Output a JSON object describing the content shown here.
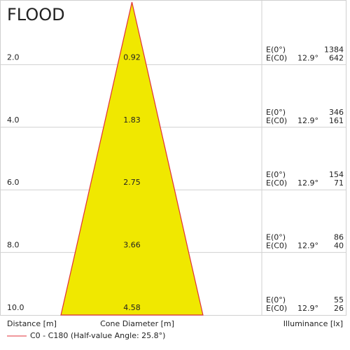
{
  "chart_data": {
    "type": "cone",
    "title": "FLOOD",
    "distances": [
      {
        "value": 2,
        "label": "2.0"
      },
      {
        "value": 4,
        "label": "4.0"
      },
      {
        "value": 6,
        "label": "6.0"
      },
      {
        "value": 8,
        "label": "8.0"
      },
      {
        "value": 10,
        "label": "10.0"
      }
    ],
    "diameters": [
      0.92,
      1.83,
      2.75,
      3.66,
      4.58
    ],
    "e0_label": "E(0°)",
    "ec0_label": "E(C0)",
    "half_angle_label": "12.9°",
    "e0": [
      1384,
      346,
      154,
      86,
      55
    ],
    "ec0": [
      642,
      161,
      71,
      40,
      26
    ],
    "x_label": "Distance [m]",
    "diameter_label": "Cone Diameter [m]",
    "illuminance_label": "Illuminance [lx]",
    "legend": "C0 - C180 (Half-value Angle: 25.8°)",
    "fill": "#f0e800",
    "line_color": "#e0303a",
    "ylim": [
      0,
      10
    ]
  }
}
